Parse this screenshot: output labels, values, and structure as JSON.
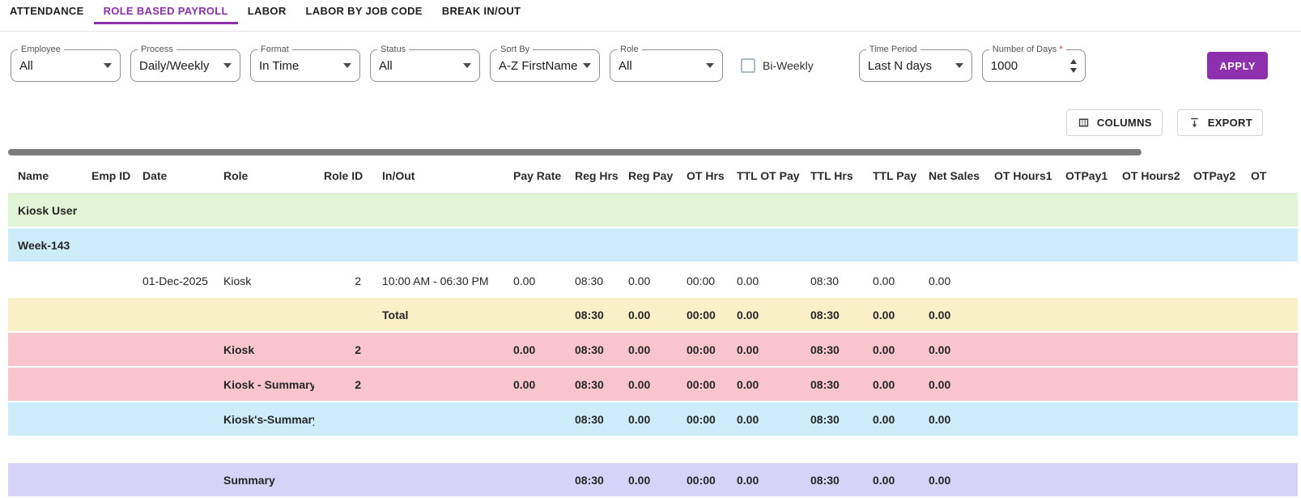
{
  "tabs": [
    {
      "label": "ATTENDANCE",
      "active": false
    },
    {
      "label": "ROLE BASED PAYROLL",
      "active": true
    },
    {
      "label": "LABOR",
      "active": false
    },
    {
      "label": "LABOR BY JOB CODE",
      "active": false
    },
    {
      "label": "BREAK IN/OUT",
      "active": false
    }
  ],
  "filters": {
    "employee": {
      "label": "Employee",
      "value": "All"
    },
    "process": {
      "label": "Process",
      "value": "Daily/Weekly"
    },
    "format": {
      "label": "Format",
      "value": "In Time"
    },
    "status": {
      "label": "Status",
      "value": "All"
    },
    "sort_by": {
      "label": "Sort By",
      "value": "A-Z FirstName"
    },
    "role": {
      "label": "Role",
      "value": "All"
    },
    "bi_weekly": {
      "label": "Bi-Weekly",
      "checked": false
    },
    "time_period": {
      "label": "Time Period",
      "value": "Last N days"
    },
    "number_of_days": {
      "label": "Number of Days",
      "required_marker": "*",
      "value": "1000"
    },
    "apply_label": "APPLY"
  },
  "toolbar": {
    "columns_label": "COLUMNS",
    "export_label": "EXPORT"
  },
  "table": {
    "columns": [
      "Name",
      "Emp ID",
      "Date",
      "Role",
      "Role ID",
      "In/Out",
      "Pay Rate",
      "Reg Hrs",
      "Reg Pay",
      "OT Hrs",
      "TTL OT Pay",
      "TTL Hrs",
      "TTL Pay",
      "Net Sales",
      "OT Hours1",
      "OTPay1",
      "OT Hours2",
      "OTPay2",
      "OT"
    ],
    "rows": [
      {
        "style": "green",
        "bold": true,
        "cells": [
          "Kiosk User",
          "",
          "",
          "",
          "",
          "",
          "",
          "",
          "",
          "",
          "",
          "",
          "",
          "",
          "",
          "",
          "",
          "",
          ""
        ]
      },
      {
        "style": "blue",
        "bold": true,
        "cells": [
          "Week-143",
          "",
          "",
          "",
          "",
          "",
          "",
          "",
          "",
          "",
          "",
          "",
          "",
          "",
          "",
          "",
          "",
          "",
          ""
        ]
      },
      {
        "style": "white",
        "bold": false,
        "cells": [
          "",
          "",
          "01-Dec-2025",
          "Kiosk",
          "2",
          "10:00 AM - 06:30 PM",
          "0.00",
          "08:30",
          "0.00",
          "00:00",
          "0.00",
          "08:30",
          "0.00",
          "0.00",
          "",
          "",
          "",
          "",
          ""
        ]
      },
      {
        "style": "yellow",
        "bold": true,
        "cells": [
          "",
          "",
          "",
          "",
          "",
          "Total",
          "",
          "08:30",
          "0.00",
          "00:00",
          "0.00",
          "08:30",
          "0.00",
          "0.00",
          "",
          "",
          "",
          "",
          ""
        ]
      },
      {
        "style": "pink",
        "bold": true,
        "cells": [
          "",
          "",
          "",
          "Kiosk",
          "2",
          "",
          "0.00",
          "08:30",
          "0.00",
          "00:00",
          "0.00",
          "08:30",
          "0.00",
          "0.00",
          "",
          "",
          "",
          "",
          ""
        ]
      },
      {
        "style": "pink",
        "bold": true,
        "cells": [
          "",
          "",
          "",
          "Kiosk - Summary",
          "2",
          "",
          "0.00",
          "08:30",
          "0.00",
          "00:00",
          "0.00",
          "08:30",
          "0.00",
          "0.00",
          "",
          "",
          "",
          "",
          ""
        ]
      },
      {
        "style": "blue",
        "bold": true,
        "cells": [
          "",
          "",
          "",
          "Kiosk's-Summary",
          "",
          "",
          "",
          "08:30",
          "0.00",
          "00:00",
          "0.00",
          "08:30",
          "0.00",
          "0.00",
          "",
          "",
          "",
          "",
          ""
        ]
      },
      {
        "style": "spacer",
        "bold": false,
        "cells": [
          "",
          "",
          "",
          "",
          "",
          "",
          "",
          "",
          "",
          "",
          "",
          "",
          "",
          "",
          "",
          "",
          "",
          "",
          ""
        ]
      },
      {
        "style": "lavender",
        "bold": true,
        "cells": [
          "",
          "",
          "",
          "Summary",
          "",
          "",
          "",
          "08:30",
          "0.00",
          "00:00",
          "0.00",
          "08:30",
          "0.00",
          "0.00",
          "",
          "",
          "",
          "",
          ""
        ]
      }
    ]
  },
  "colors": {
    "accent_purple": "#8e30ad",
    "row_green": "#dff5d5",
    "row_blue": "#cdecfa",
    "row_yellow": "#faf0c8",
    "row_pink": "#f9c5cd",
    "row_lavender": "#d7d3f8",
    "scrollbar_thumb": "#7d7d7d"
  }
}
